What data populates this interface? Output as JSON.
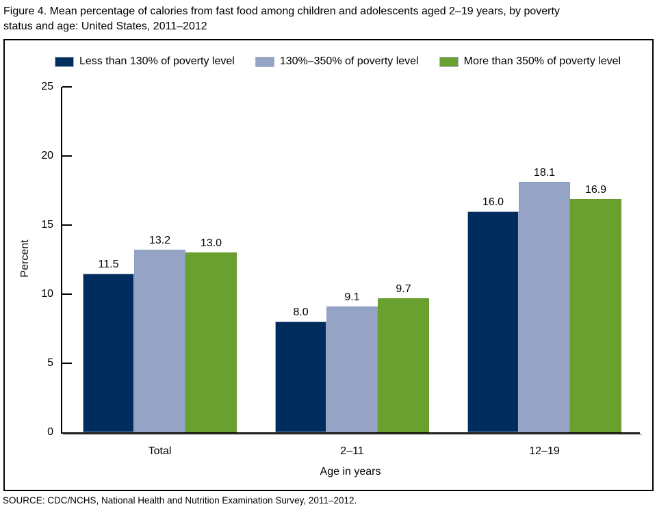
{
  "header": {
    "line1": "Figure 4. Mean percentage of calories from fast food among children and adolescents aged 2–19 years, by poverty",
    "line2": "status and age: United States, 2011–2012"
  },
  "source": "SOURCE: CDC/NCHS, National Health and Nutrition Examination Survey, 2011–2012.",
  "chart_data": {
    "type": "bar",
    "title": "Figure 4. Mean percentage of calories from fast food among children and adolescents aged 2–19 years, by poverty status and age: United States, 2011–2012",
    "categories": [
      "Total",
      "2–11",
      "12–19"
    ],
    "xlabel": "Age in years",
    "ylabel": "Percent",
    "ylim": [
      0,
      25
    ],
    "yticks": [
      0,
      5,
      10,
      15,
      20,
      25
    ],
    "grid": false,
    "legend_position": "top",
    "value_labels_decimals": 1,
    "series": [
      {
        "name": "Less than 130% of poverty level",
        "color": "#002d5e",
        "border": "#a4b1c7",
        "values": [
          11.5,
          8.0,
          16.0
        ]
      },
      {
        "name": "130%–350% of poverty level",
        "color": "#95a3c4",
        "border": "#8d9dc0",
        "values": [
          13.2,
          9.1,
          18.1
        ]
      },
      {
        "name": "More than 350% of poverty level",
        "color": "#6aa02f",
        "border": "#679b2d",
        "values": [
          13.0,
          9.7,
          16.9
        ]
      }
    ]
  }
}
